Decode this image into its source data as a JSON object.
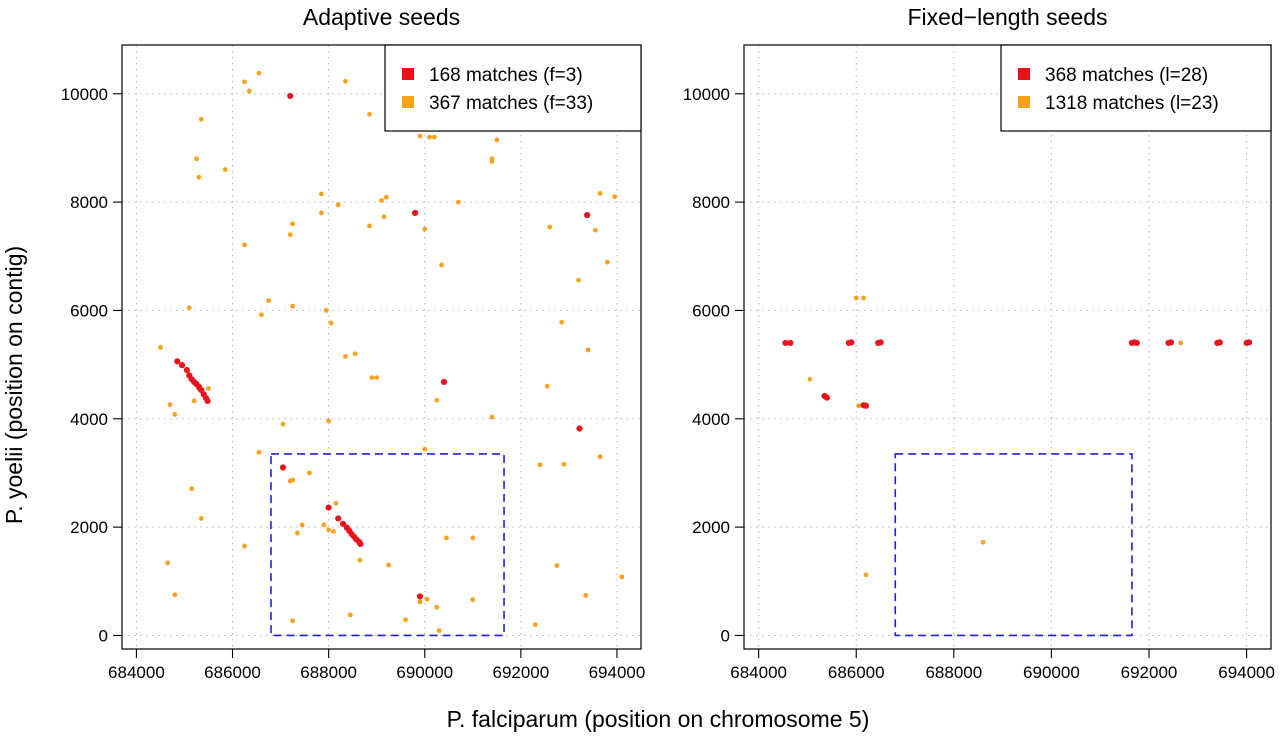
{
  "figure": {
    "xlabel": "P. falciparum (position on chromosome 5)",
    "ylabel": "P. yoelii (position on contig)"
  },
  "chart_data": [
    {
      "type": "scatter",
      "title": "Adaptive seeds",
      "xlim": [
        683700,
        694500
      ],
      "ylim": [
        -250,
        10900
      ],
      "x_ticks": [
        684000,
        686000,
        688000,
        690000,
        692000,
        694000
      ],
      "y_ticks": [
        0,
        2000,
        4000,
        6000,
        8000,
        10000
      ],
      "grid": true,
      "legend_position": "top-right",
      "box": {
        "x": [
          686800,
          691650
        ],
        "y": [
          0,
          3350
        ],
        "color": "#1f1fd6",
        "style": "dashed"
      },
      "series": [
        {
          "name": "168 matches (f=3)",
          "color": "#e8141c",
          "points": [
            [
              687200,
              9960
            ],
            [
              689800,
              7800
            ],
            [
              693380,
              7760
            ],
            [
              690400,
              4680
            ],
            [
              693220,
              3820
            ],
            [
              687050,
              3100
            ],
            [
              689900,
              720
            ],
            [
              688000,
              2360
            ],
            [
              684850,
              5060
            ],
            [
              684950,
              4990
            ],
            [
              685050,
              4900
            ],
            [
              685100,
              4800
            ],
            [
              685150,
              4730
            ],
            [
              685200,
              4680
            ],
            [
              685250,
              4640
            ],
            [
              685300,
              4590
            ],
            [
              685350,
              4530
            ],
            [
              685400,
              4450
            ],
            [
              685450,
              4380
            ],
            [
              685480,
              4330
            ],
            [
              688200,
              2160
            ],
            [
              688300,
              2060
            ],
            [
              688380,
              1990
            ],
            [
              688430,
              1930
            ],
            [
              688480,
              1870
            ],
            [
              688530,
              1820
            ],
            [
              688580,
              1770
            ],
            [
              688640,
              1720
            ],
            [
              688660,
              1690
            ]
          ]
        },
        {
          "name": "367 matches (f=33)",
          "color": "#f6a21c",
          "points": [
            [
              686250,
              10220
            ],
            [
              686350,
              10050
            ],
            [
              686550,
              10380
            ],
            [
              688350,
              10230
            ],
            [
              689300,
              9930
            ],
            [
              690100,
              9200
            ],
            [
              690200,
              9200
            ],
            [
              691500,
              9150
            ],
            [
              689900,
              9220
            ],
            [
              685350,
              9530
            ],
            [
              688850,
              9620
            ],
            [
              691400,
              8800
            ],
            [
              691400,
              8750
            ],
            [
              685250,
              8800
            ],
            [
              685300,
              8460
            ],
            [
              685850,
              8600
            ],
            [
              687850,
              8150
            ],
            [
              688200,
              7950
            ],
            [
              689100,
              8030
            ],
            [
              689200,
              8090
            ],
            [
              690700,
              8000
            ],
            [
              693950,
              8100
            ],
            [
              693650,
              8160
            ],
            [
              687250,
              7600
            ],
            [
              687850,
              7800
            ],
            [
              688850,
              7560
            ],
            [
              689150,
              7730
            ],
            [
              687200,
              7400
            ],
            [
              686250,
              7210
            ],
            [
              692600,
              7540
            ],
            [
              693550,
              7480
            ],
            [
              690000,
              7500
            ],
            [
              693800,
              6890
            ],
            [
              690350,
              6840
            ],
            [
              693200,
              6560
            ],
            [
              685100,
              6050
            ],
            [
              686750,
              6180
            ],
            [
              686600,
              5920
            ],
            [
              687250,
              6080
            ],
            [
              687950,
              6000
            ],
            [
              688050,
              5770
            ],
            [
              692850,
              5780
            ],
            [
              684500,
              5320
            ],
            [
              688550,
              5200
            ],
            [
              688350,
              5150
            ],
            [
              688900,
              4760
            ],
            [
              689000,
              4760
            ],
            [
              693400,
              5270
            ],
            [
              685300,
              4550
            ],
            [
              685500,
              4560
            ],
            [
              685200,
              4330
            ],
            [
              692550,
              4600
            ],
            [
              684800,
              4080
            ],
            [
              684700,
              4260
            ],
            [
              690250,
              4340
            ],
            [
              688000,
              3960
            ],
            [
              687050,
              3900
            ],
            [
              691400,
              4030
            ],
            [
              686550,
              3380
            ],
            [
              693650,
              3300
            ],
            [
              692400,
              3150
            ],
            [
              692900,
              3160
            ],
            [
              690000,
              3440
            ],
            [
              687600,
              3000
            ],
            [
              687200,
              2850
            ],
            [
              687250,
              2870
            ],
            [
              685150,
              2710
            ],
            [
              685350,
              2160
            ],
            [
              687450,
              2040
            ],
            [
              687350,
              1890
            ],
            [
              688150,
              2440
            ],
            [
              687900,
              2040
            ],
            [
              688000,
              1950
            ],
            [
              688100,
              1920
            ],
            [
              690450,
              1800
            ],
            [
              691000,
              1800
            ],
            [
              686250,
              1650
            ],
            [
              688650,
              1390
            ],
            [
              689250,
              1300
            ],
            [
              692750,
              1290
            ],
            [
              684650,
              1340
            ],
            [
              694100,
              1080
            ],
            [
              684800,
              750
            ],
            [
              693350,
              740
            ],
            [
              690050,
              670
            ],
            [
              691000,
              660
            ],
            [
              690250,
              520
            ],
            [
              689900,
              620
            ],
            [
              687250,
              270
            ],
            [
              688450,
              380
            ],
            [
              689600,
              290
            ],
            [
              692300,
              200
            ],
            [
              690300,
              90
            ]
          ]
        }
      ]
    },
    {
      "type": "scatter",
      "title": "Fixed−length seeds",
      "xlim": [
        683700,
        694500
      ],
      "ylim": [
        -250,
        10900
      ],
      "x_ticks": [
        684000,
        686000,
        688000,
        690000,
        692000,
        694000
      ],
      "y_ticks": [
        0,
        2000,
        4000,
        6000,
        8000,
        10000
      ],
      "grid": true,
      "legend_position": "top-right",
      "box": {
        "x": [
          686800,
          691650
        ],
        "y": [
          0,
          3350
        ],
        "color": "#1f1fd6",
        "style": "dashed"
      },
      "series": [
        {
          "name": "368 matches (l=28)",
          "color": "#e8141c",
          "points": [
            [
              684550,
              5400
            ],
            [
              684650,
              5400
            ],
            [
              685850,
              5400
            ],
            [
              685900,
              5410
            ],
            [
              686450,
              5400
            ],
            [
              686500,
              5410
            ],
            [
              685350,
              4420
            ],
            [
              685400,
              4390
            ],
            [
              686150,
              4250
            ],
            [
              686200,
              4240
            ],
            [
              691650,
              5400
            ],
            [
              691700,
              5410
            ],
            [
              691750,
              5400
            ],
            [
              692400,
              5400
            ],
            [
              692450,
              5410
            ],
            [
              693400,
              5400
            ],
            [
              693450,
              5410
            ],
            [
              694000,
              5400
            ],
            [
              694050,
              5410
            ]
          ]
        },
        {
          "name": "1318 matches (l=23)",
          "color": "#f6a21c",
          "points": [
            [
              686000,
              6230
            ],
            [
              686150,
              6230
            ],
            [
              685050,
              4730
            ],
            [
              686050,
              4240
            ],
            [
              688600,
              1720
            ],
            [
              686200,
              1120
            ],
            [
              692650,
              5400
            ]
          ]
        }
      ]
    }
  ]
}
